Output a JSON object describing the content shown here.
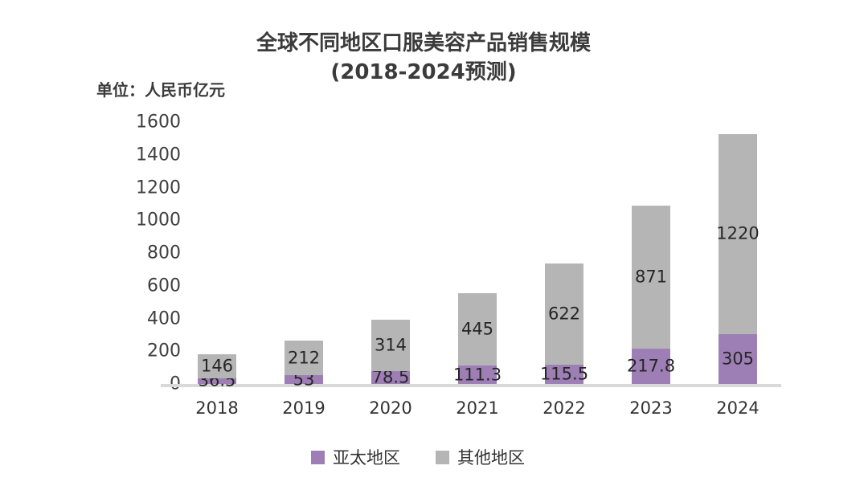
{
  "title": {
    "line1": "全球不同地区口服美容产品销售规模",
    "line2": "(2018-2024预测)"
  },
  "unit_label": "单位：人民币亿元",
  "colors": {
    "asia_pacific": "#9d7fb5",
    "other_regions": "#b5b5b5",
    "axis_line": "#d9d9d9",
    "title_text": "#3b3b3b",
    "label_text": "#262626",
    "background": "#ffffff"
  },
  "chart_data": {
    "type": "bar",
    "stacked": true,
    "title": "全球不同地区口服美容产品销售规模 (2018-2024预测)",
    "unit": "单位：人民币亿元",
    "categories": [
      "2018",
      "2019",
      "2020",
      "2021",
      "2022",
      "2023",
      "2024"
    ],
    "series": [
      {
        "name": "亚太地区",
        "key": "asia-pacific",
        "color": "#9d7fb5",
        "values": [
          36.5,
          53,
          78.5,
          111.3,
          115.5,
          217.8,
          305
        ]
      },
      {
        "name": "其他地区",
        "key": "other-regions",
        "color": "#b5b5b5",
        "values": [
          146,
          212,
          314,
          445,
          622,
          871,
          1220
        ]
      }
    ],
    "ylim": [
      0,
      1600
    ],
    "yticks": [
      0,
      200,
      400,
      600,
      800,
      1000,
      1200,
      1400,
      1600
    ],
    "grid": false,
    "data_labels": true,
    "legend_position": "bottom"
  }
}
